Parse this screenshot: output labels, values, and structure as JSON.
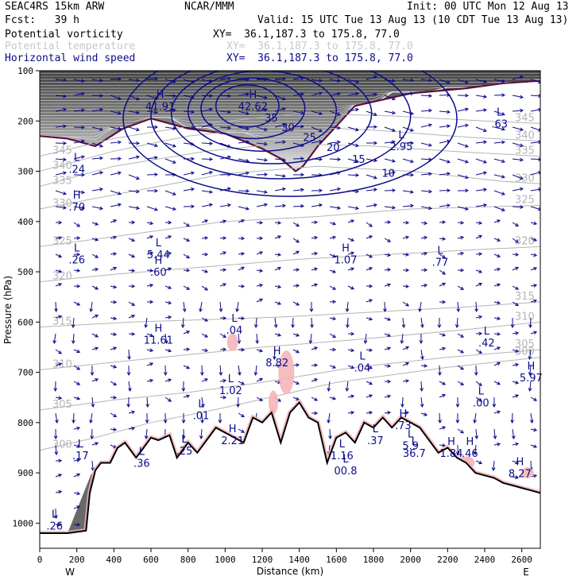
{
  "header": {
    "line1_left": "SEAC4RS 15km ARW",
    "line1_mid": "NCAR/MMM",
    "line1_right": "Init: 00 UTC Mon 12 Aug 13",
    "line2_left": "Fcst:   39 h",
    "line2_right": "Valid: 15 UTC Tue 13 Aug 13 (10 CDT Tue 13 Aug 13)",
    "line3_left": "Potential vorticity",
    "line3_right": "XY=  36.1,187.3 to 175.8, 77.0",
    "line4_left": "Potential temperature",
    "line4_right": "XY=  36.1,187.3 to 175.8, 77.0",
    "line5_left": "Horizontal wind speed",
    "line5_right": "XY=  36.1,187.3 to 175.8, 77.0"
  },
  "colors": {
    "pv": "#1a1a1a",
    "theta": "#b4b4b4",
    "wind": "#0b0b8c",
    "cloud": "#f4b0b4",
    "tropopause": "#5a1040",
    "terrain": "#000000"
  },
  "chart_data": {
    "type": "vertical cross-section",
    "xlabel": "Distance (km)",
    "ylabel": "Pressure (hPa)",
    "xlim": [
      0,
      2700
    ],
    "ylim": [
      1050,
      100
    ],
    "x_ticks": [
      "0",
      "200",
      "400",
      "600",
      "800",
      "1000",
      "1200",
      "1400",
      "1600",
      "1800",
      "2000",
      "2200",
      "2400",
      "2600"
    ],
    "y_ticks": [
      "100",
      "200",
      "300",
      "400",
      "500",
      "600",
      "700",
      "800",
      "900",
      "1000"
    ],
    "end_labels": {
      "left": "W",
      "right": "E"
    },
    "theta_contours": [
      {
        "level": "300",
        "points": [
          [
            0,
            855
          ],
          [
            300,
            830
          ],
          [
            600,
            800
          ],
          [
            1000,
            770
          ],
          [
            1600,
            720
          ],
          [
            2200,
            690
          ],
          [
            2700,
            670
          ]
        ]
      },
      {
        "level": "305",
        "points": [
          [
            0,
            775
          ],
          [
            400,
            755
          ],
          [
            800,
            740
          ],
          [
            1200,
            720
          ],
          [
            1700,
            690
          ],
          [
            2200,
            670
          ],
          [
            2700,
            655
          ]
        ]
      },
      {
        "level": "310",
        "points": [
          [
            0,
            695
          ],
          [
            400,
            680
          ],
          [
            800,
            665
          ],
          [
            1200,
            650
          ],
          [
            1700,
            635
          ],
          [
            2300,
            615
          ],
          [
            2700,
            600
          ]
        ]
      },
      {
        "level": "315",
        "points": [
          [
            0,
            610
          ],
          [
            500,
            600
          ],
          [
            900,
            595
          ],
          [
            1300,
            590
          ],
          [
            1800,
            580
          ],
          [
            2300,
            570
          ],
          [
            2700,
            560
          ]
        ]
      },
      {
        "level": "320",
        "points": [
          [
            0,
            520
          ],
          [
            400,
            505
          ],
          [
            900,
            490
          ],
          [
            1400,
            475
          ],
          [
            1900,
            465
          ],
          [
            2400,
            455
          ],
          [
            2700,
            450
          ]
        ]
      },
      {
        "level": "325",
        "points": [
          [
            0,
            450
          ],
          [
            500,
            425
          ],
          [
            1000,
            400
          ],
          [
            1500,
            390
          ],
          [
            2000,
            375
          ],
          [
            2500,
            370
          ],
          [
            2700,
            368
          ]
        ]
      },
      {
        "level": "330",
        "points": [
          [
            0,
            375
          ],
          [
            500,
            340
          ],
          [
            1000,
            305
          ],
          [
            1500,
            290
          ],
          [
            2000,
            300
          ],
          [
            2500,
            320
          ],
          [
            2700,
            325
          ]
        ]
      },
      {
        "level": "335",
        "points": [
          [
            0,
            330
          ],
          [
            400,
            290
          ],
          [
            900,
            260
          ],
          [
            1300,
            245
          ],
          [
            1800,
            250
          ],
          [
            2300,
            262
          ],
          [
            2700,
            270
          ]
        ]
      },
      {
        "level": "340",
        "points": [
          [
            0,
            300
          ],
          [
            400,
            260
          ],
          [
            800,
            230
          ],
          [
            1300,
            210
          ],
          [
            1800,
            218
          ],
          [
            2300,
            232
          ],
          [
            2700,
            240
          ]
        ]
      },
      {
        "level": "345",
        "points": [
          [
            0,
            270
          ],
          [
            400,
            235
          ],
          [
            900,
            205
          ],
          [
            1400,
            185
          ],
          [
            1900,
            190
          ],
          [
            2400,
            200
          ],
          [
            2700,
            205
          ]
        ]
      }
    ],
    "wind_speed_contours": [
      {
        "level": "10",
        "center": [
          1350,
          195
        ],
        "rx": 900,
        "ry": 155
      },
      {
        "level": "15",
        "center": [
          1300,
          190
        ],
        "rx": 700,
        "ry": 125
      },
      {
        "level": "20",
        "center": [
          1250,
          185
        ],
        "rx": 540,
        "ry": 100
      },
      {
        "level": "25",
        "center": [
          1200,
          180
        ],
        "rx": 400,
        "ry": 80
      },
      {
        "level": "30",
        "center": [
          1150,
          175
        ],
        "rx": 280,
        "ry": 60
      },
      {
        "level": "35",
        "center": [
          1120,
          170
        ],
        "rx": 170,
        "ry": 42
      }
    ],
    "extrema_labels": [
      {
        "type": "H",
        "value": "41.91",
        "x": 650,
        "y": 175
      },
      {
        "type": "H",
        "value": "42.62",
        "x": 1150,
        "y": 175
      },
      {
        "type": "L",
        "value": ".63",
        "x": 2480,
        "y": 210
      },
      {
        "type": "L",
        "value": "2.95",
        "x": 1950,
        "y": 255
      },
      {
        "type": "L",
        "value": ".24",
        "x": 200,
        "y": 300
      },
      {
        "type": "H",
        "value": ".70",
        "x": 200,
        "y": 375
      },
      {
        "type": "L",
        "value": ".26",
        "x": 200,
        "y": 480
      },
      {
        "type": "L",
        "value": "5.44",
        "x": 640,
        "y": 470
      },
      {
        "type": "H",
        "value": ".60",
        "x": 640,
        "y": 505
      },
      {
        "type": "H",
        "value": "1.07",
        "x": 1650,
        "y": 480
      },
      {
        "type": "L",
        "value": ".77",
        "x": 2160,
        "y": 485
      },
      {
        "type": "H",
        "value": "11.61",
        "x": 640,
        "y": 640
      },
      {
        "type": "L",
        "value": ".04",
        "x": 1050,
        "y": 620
      },
      {
        "type": "L",
        "value": ".42",
        "x": 2410,
        "y": 645
      },
      {
        "type": "H",
        "value": "8.82",
        "x": 1280,
        "y": 685
      },
      {
        "type": "L",
        "value": ".04",
        "x": 1740,
        "y": 695
      },
      {
        "type": "H",
        "value": "5.97",
        "x": 2650,
        "y": 715
      },
      {
        "type": "L",
        "value": "1.02",
        "x": 1030,
        "y": 740
      },
      {
        "type": "L",
        "value": ".00",
        "x": 2380,
        "y": 765
      },
      {
        "type": "L",
        "value": ".01",
        "x": 870,
        "y": 790
      },
      {
        "type": "H",
        "value": ".73",
        "x": 1960,
        "y": 810
      },
      {
        "type": "H",
        "value": "2.21",
        "x": 1040,
        "y": 840
      },
      {
        "type": "L",
        "value": ".37",
        "x": 1810,
        "y": 840
      },
      {
        "type": "L",
        "value": ".17",
        "x": 220,
        "y": 870
      },
      {
        "type": "L",
        "value": ".25",
        "x": 780,
        "y": 860
      },
      {
        "type": "H",
        "value": "1.84",
        "x": 2220,
        "y": 865
      },
      {
        "type": "H",
        "value": ".46",
        "x": 2320,
        "y": 865
      },
      {
        "type": "L",
        "value": "1.16",
        "x": 1630,
        "y": 870
      },
      {
        "type": "L",
        "value": "5.9",
        "x": 2000,
        "y": 850
      },
      {
        "type": "L",
        "value": "36.7",
        "x": 2020,
        "y": 865
      },
      {
        "type": "L",
        "value": "00.8",
        "x": 1650,
        "y": 900
      },
      {
        "type": "L",
        "value": ".36",
        "x": 550,
        "y": 885
      },
      {
        "type": "H",
        "value": "8.27",
        "x": 2590,
        "y": 905
      },
      {
        "type": "L",
        "value": ".26",
        "x": 80,
        "y": 1010
      }
    ]
  }
}
